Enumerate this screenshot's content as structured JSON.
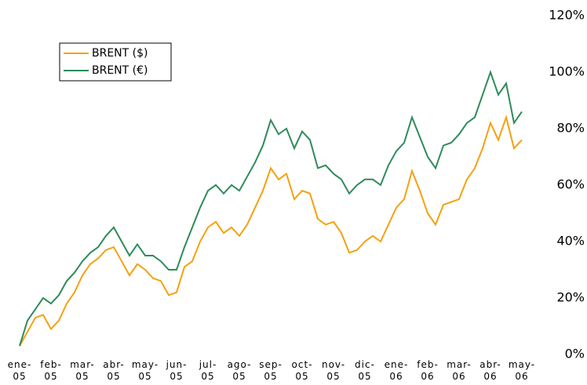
{
  "chart_data": {
    "type": "line",
    "x": [
      0,
      0.25,
      0.5,
      0.75,
      1,
      1.25,
      1.5,
      1.75,
      2,
      2.25,
      2.5,
      2.75,
      3,
      3.25,
      3.5,
      3.75,
      4,
      4.25,
      4.5,
      4.75,
      5,
      5.25,
      5.5,
      5.75,
      6,
      6.25,
      6.5,
      6.75,
      7,
      7.25,
      7.5,
      7.75,
      8,
      8.25,
      8.5,
      8.75,
      9,
      9.25,
      9.5,
      9.75,
      10,
      10.25,
      10.5,
      10.75,
      11,
      11.25,
      11.5,
      11.75,
      12,
      12.25,
      12.5,
      12.75,
      13,
      13.25,
      13.5,
      13.75,
      14,
      14.25,
      14.5,
      14.75,
      15,
      15.25,
      15.5,
      15.75,
      16
    ],
    "series": [
      {
        "name": "BRENT ($)",
        "color": "#f5a10f",
        "values": [
          3,
          8,
          13,
          14,
          9,
          12,
          18,
          22,
          28,
          32,
          34,
          37,
          38,
          33,
          28,
          32,
          30,
          27,
          26,
          21,
          22,
          31,
          33,
          40,
          45,
          47,
          43,
          45,
          42,
          46,
          52,
          58,
          66,
          62,
          64,
          55,
          58,
          57,
          48,
          46,
          47,
          43,
          36,
          37,
          40,
          42,
          40,
          46,
          52,
          55,
          65,
          58,
          50,
          46,
          53,
          54,
          55,
          62,
          66,
          73,
          82,
          76,
          84,
          73,
          76
        ]
      },
      {
        "name": "BRENT (€)",
        "color": "#2e8b5a",
        "values": [
          3,
          12,
          16,
          20,
          18,
          21,
          26,
          29,
          33,
          36,
          38,
          42,
          45,
          40,
          35,
          39,
          35,
          35,
          33,
          30,
          30,
          38,
          45,
          52,
          58,
          60,
          57,
          60,
          58,
          63,
          68,
          74,
          83,
          78,
          80,
          73,
          79,
          76,
          66,
          67,
          64,
          62,
          57,
          60,
          62,
          62,
          60,
          67,
          72,
          75,
          84,
          77,
          70,
          66,
          74,
          75,
          78,
          82,
          84,
          92,
          100,
          92,
          96,
          82,
          86
        ]
      }
    ],
    "xlim": [
      0,
      16
    ],
    "xticks": [
      {
        "value": 0,
        "label": "ene-\n05"
      },
      {
        "value": 1,
        "label": "feb-\n05"
      },
      {
        "value": 2,
        "label": "mar-\n05"
      },
      {
        "value": 3,
        "label": "abr-\n05"
      },
      {
        "value": 4,
        "label": "may-\n05"
      },
      {
        "value": 5,
        "label": "jun-\n05"
      },
      {
        "value": 6,
        "label": "jul-\n05"
      },
      {
        "value": 7,
        "label": "ago-\n05"
      },
      {
        "value": 8,
        "label": "sep-\n05"
      },
      {
        "value": 9,
        "label": "oct-\n05"
      },
      {
        "value": 10,
        "label": "nov-\n05"
      },
      {
        "value": 11,
        "label": "dic-\n05"
      },
      {
        "value": 12,
        "label": "ene-\n06"
      },
      {
        "value": 13,
        "label": "feb-\n06"
      },
      {
        "value": 14,
        "label": "mar-\n06"
      },
      {
        "value": 15,
        "label": "abr-\n06"
      },
      {
        "value": 16,
        "label": "may-\n06"
      }
    ],
    "ylim": [
      0,
      120
    ],
    "yticks": [
      {
        "value": 0,
        "label": "0%"
      },
      {
        "value": 20,
        "label": "20%"
      },
      {
        "value": 40,
        "label": "40%"
      },
      {
        "value": 60,
        "label": "60%"
      },
      {
        "value": 80,
        "label": "80%"
      },
      {
        "value": 100,
        "label": "100%"
      },
      {
        "value": 120,
        "label": "120%"
      }
    ],
    "legend": "upper left"
  }
}
